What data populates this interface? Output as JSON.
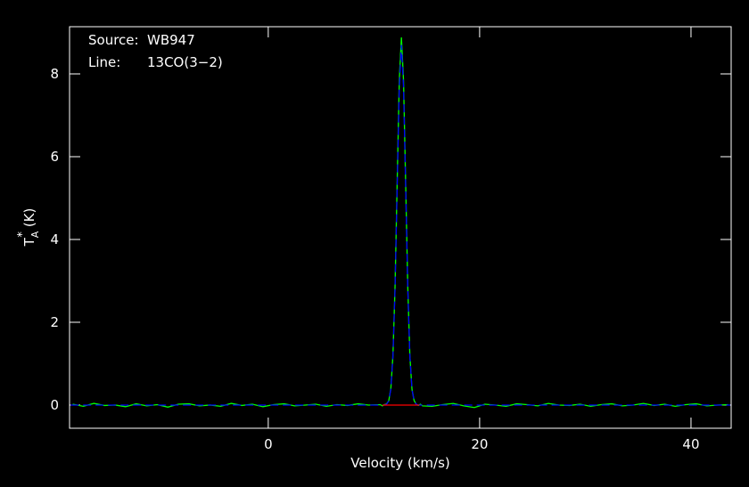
{
  "chart_data": {
    "type": "line",
    "xlabel": "Velocity (km/s)",
    "ylabel": {
      "main": "T",
      "sub": "A",
      "sup": "*",
      "unit": "(K)"
    },
    "annotations": [
      {
        "label": "Source:",
        "text": "WB947"
      },
      {
        "label": "Line:",
        "text": "13CO(3−2)"
      }
    ],
    "xlim": [
      -18.8,
      43.8
    ],
    "xticks": [
      0,
      20,
      40
    ],
    "ylim": [
      -0.56,
      9.14
    ],
    "yticks": [
      0,
      2,
      4,
      6,
      8
    ],
    "series": [
      {
        "color": "#00ff00",
        "dash": false,
        "x": [
          -18.5,
          -17.5,
          -16.5,
          -15.5,
          -14.5,
          -13.5,
          -12.5,
          -11.5,
          -10.5,
          -9.5,
          -8.5,
          -7.5,
          -6.5,
          -5.5,
          -4.5,
          -3.5,
          -2.5,
          -1.5,
          -0.5,
          0.5,
          1.5,
          2.5,
          3.5,
          4.5,
          5.5,
          6.5,
          7.5,
          8.5,
          9.5,
          10.6,
          10.8,
          11.0,
          11.2,
          11.4,
          11.6,
          11.8,
          12.0,
          12.2,
          12.4,
          12.6,
          12.8,
          13.0,
          13.2,
          13.4,
          13.6,
          13.8,
          14.0,
          14.2,
          14.4,
          14.6,
          15.5,
          16.5,
          17.5,
          18.5,
          19.5,
          20.5,
          21.5,
          22.5,
          23.5,
          24.5,
          25.5,
          26.5,
          27.5,
          28.5,
          29.5,
          30.5,
          31.5,
          32.5,
          33.5,
          34.5,
          35.5,
          36.5,
          37.5,
          38.5,
          39.5,
          40.5,
          41.5,
          42.5,
          43.5
        ],
        "values": [
          0.02,
          -0.03,
          0.04,
          -0.01,
          0.0,
          -0.04,
          0.03,
          -0.02,
          0.01,
          -0.05,
          0.02,
          0.03,
          -0.02,
          0.0,
          -0.03,
          0.04,
          -0.01,
          0.02,
          -0.04,
          0.01,
          0.03,
          -0.02,
          0.0,
          0.02,
          -0.03,
          0.01,
          -0.01,
          0.03,
          0.0,
          0.01,
          -0.02,
          0.01,
          0.03,
          0.1,
          0.4,
          1.21,
          2.88,
          5.4,
          7.85,
          8.88,
          7.84,
          5.38,
          2.87,
          1.19,
          0.38,
          0.11,
          0.02,
          -0.01,
          0.02,
          -0.02,
          -0.03,
          0.01,
          0.04,
          -0.02,
          -0.06,
          0.02,
          0.0,
          -0.03,
          0.03,
          0.01,
          -0.02,
          0.04,
          0.0,
          -0.01,
          0.02,
          -0.03,
          0.01,
          0.03,
          -0.02,
          0.0,
          0.04,
          -0.01,
          0.02,
          -0.03,
          0.01,
          0.03,
          -0.02,
          0.0,
          0.01
        ]
      },
      {
        "color": "#0000ff",
        "dash": true,
        "x": [
          -18.7,
          10.6,
          10.8,
          11.0,
          11.2,
          11.4,
          11.6,
          11.8,
          12.0,
          12.2,
          12.4,
          12.6,
          12.8,
          13.0,
          13.2,
          13.4,
          13.6,
          13.8,
          14.0,
          14.2,
          14.4,
          14.6,
          43.7
        ],
        "values": [
          0,
          0,
          0,
          0,
          0.02,
          0.1,
          0.38,
          1.18,
          2.82,
          5.28,
          7.68,
          8.7,
          7.68,
          5.28,
          2.82,
          1.18,
          0.38,
          0.1,
          0.02,
          0,
          0,
          0,
          0
        ]
      },
      {
        "color": "#ff0000",
        "dash": false,
        "x": [
          10.8,
          14.3
        ],
        "values": [
          0,
          0
        ]
      }
    ]
  }
}
